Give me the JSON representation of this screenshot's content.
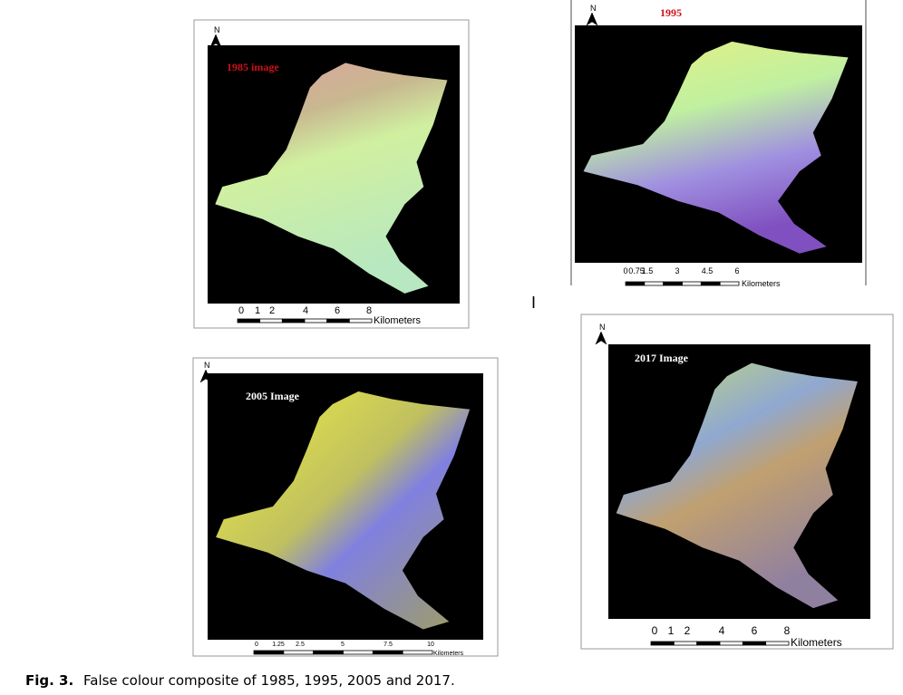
{
  "figure": {
    "panels": [
      {
        "label": "1985 image",
        "north": "N",
        "scale_labels": [
          "0",
          "1",
          "2",
          "4",
          "6",
          "8"
        ],
        "scale_unit": "Kilometers"
      },
      {
        "label": "1995",
        "north": "N",
        "scale_labels": [
          "0",
          "0.75",
          "1.5",
          "3",
          "4.5",
          "6"
        ],
        "scale_unit": "Kilometers"
      },
      {
        "label": "2005 Image",
        "north": "N",
        "scale_labels": [
          "0",
          "1.25",
          "2.5",
          "5",
          "7.5",
          "10"
        ],
        "scale_unit": "Kilometers"
      },
      {
        "label": "2017 Image",
        "north": "N",
        "scale_labels": [
          "0",
          "1",
          "2",
          "4",
          "6",
          "8"
        ],
        "scale_unit": "Kilometers"
      }
    ],
    "stray_mark": "I"
  },
  "caption": {
    "label": "Fig. 3.",
    "text": "False colour composite of 1985, 1995, 2005 and 2017."
  }
}
